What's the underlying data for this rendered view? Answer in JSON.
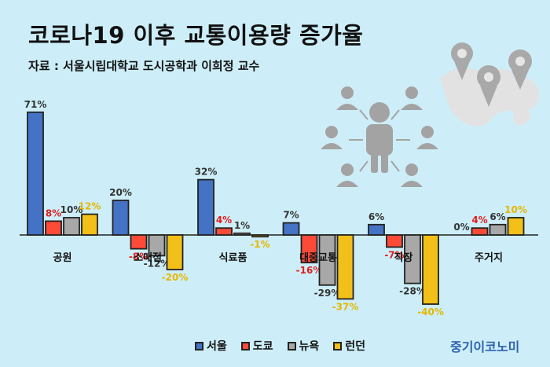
{
  "title": "코로나19 이후 교통이용량 증가율",
  "subtitle": "자료 : 서울시립대학교 도시공학과 이희정 교수",
  "brand": "중기이코노미",
  "colors": {
    "seoul": "#4472c4",
    "tokyo": "#ff4a38",
    "newyork": "#a8a8a8",
    "london": "#f2c018",
    "label_tokyo": "#e02020",
    "label_london": "#e5b700"
  },
  "chart_data": {
    "type": "bar",
    "title": "코로나19 이후 교통이용량 증가율",
    "categories": [
      "공원",
      "소매점",
      "식료품",
      "대중교통",
      "직장",
      "주거지"
    ],
    "series": [
      {
        "name": "서울",
        "values": [
          71,
          20,
          32,
          7,
          6,
          0
        ]
      },
      {
        "name": "도쿄",
        "values": [
          8,
          -8,
          4,
          -16,
          -7,
          4
        ]
      },
      {
        "name": "뉴욕",
        "values": [
          10,
          -12,
          1,
          -29,
          -28,
          6
        ]
      },
      {
        "name": "런던",
        "values": [
          12,
          -20,
          -1,
          -37,
          -40,
          10
        ]
      }
    ],
    "value_labels": {
      "서울": [
        "71%",
        "20%",
        "32%",
        "7%",
        "6%",
        "0%"
      ],
      "도쿄": [
        "8%",
        "-8%",
        "4%",
        "-16%",
        "-7%",
        "4%"
      ],
      "뉴욕": [
        "10%",
        "-12%",
        "1%",
        "-29%",
        "-28%",
        "6%"
      ],
      "런던": [
        "12%",
        "-20%",
        "-1%",
        "-37%",
        "-40%",
        "10%"
      ]
    },
    "unit": "%",
    "legend_position": "bottom",
    "grid": false
  }
}
